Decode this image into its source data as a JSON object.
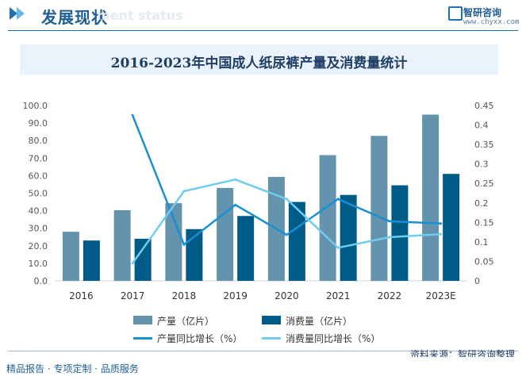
{
  "header": {
    "title": "发展现状",
    "subtitle_faded": "ment status",
    "brand_name": "智研咨询",
    "brand_url": "www.chyxx.com"
  },
  "footer": {
    "source": "资料来源：智研咨询整理",
    "tagline": "精品报告 · 专项定制 · 品质服务"
  },
  "colors": {
    "production_bar": "#6393ad",
    "consumption_bar": "#005b86",
    "production_growth_line": "#1a8fd2",
    "consumption_growth_line": "#6fcbef"
  },
  "chart_data": {
    "type": "bar",
    "title": "2016-2023年中国成人纸尿裤产量及消费量统计",
    "categories": [
      "2016",
      "2017",
      "2018",
      "2019",
      "2020",
      "2021",
      "2022",
      "2023E"
    ],
    "ylim": [
      0,
      100
    ],
    "y_ticks": [
      "100.0",
      "90.0",
      "80.0",
      "70.0",
      "60.0",
      "50.0",
      "40.0",
      "30.0",
      "20.0",
      "10.0",
      "0.0"
    ],
    "y2lim": [
      0,
      0.45
    ],
    "y2_ticks": [
      "0.45",
      "0.4",
      "0.35",
      "0.3",
      "0.25",
      "0.2",
      "0.15",
      "0.1",
      "0.05",
      "0"
    ],
    "series": [
      {
        "name": "产量（亿片）",
        "kind": "bar",
        "axis": "left",
        "values": [
          28.0,
          40.3,
          44.3,
          53.0,
          59.3,
          71.7,
          82.7,
          94.8
        ]
      },
      {
        "name": "消费量（亿片）",
        "kind": "bar",
        "axis": "left",
        "values": [
          23.0,
          24.0,
          29.5,
          37.0,
          45.0,
          49.0,
          54.5,
          61.0
        ]
      },
      {
        "name": "产量同比增长（%）",
        "kind": "line",
        "axis": "right",
        "values": [
          null,
          0.425,
          0.093,
          0.195,
          0.118,
          0.21,
          0.153,
          0.147
        ]
      },
      {
        "name": "消费量同比增长（%）",
        "kind": "line",
        "axis": "right",
        "values": [
          null,
          0.045,
          0.23,
          0.26,
          0.21,
          0.085,
          0.112,
          0.12
        ]
      }
    ],
    "legend_position": "bottom"
  }
}
